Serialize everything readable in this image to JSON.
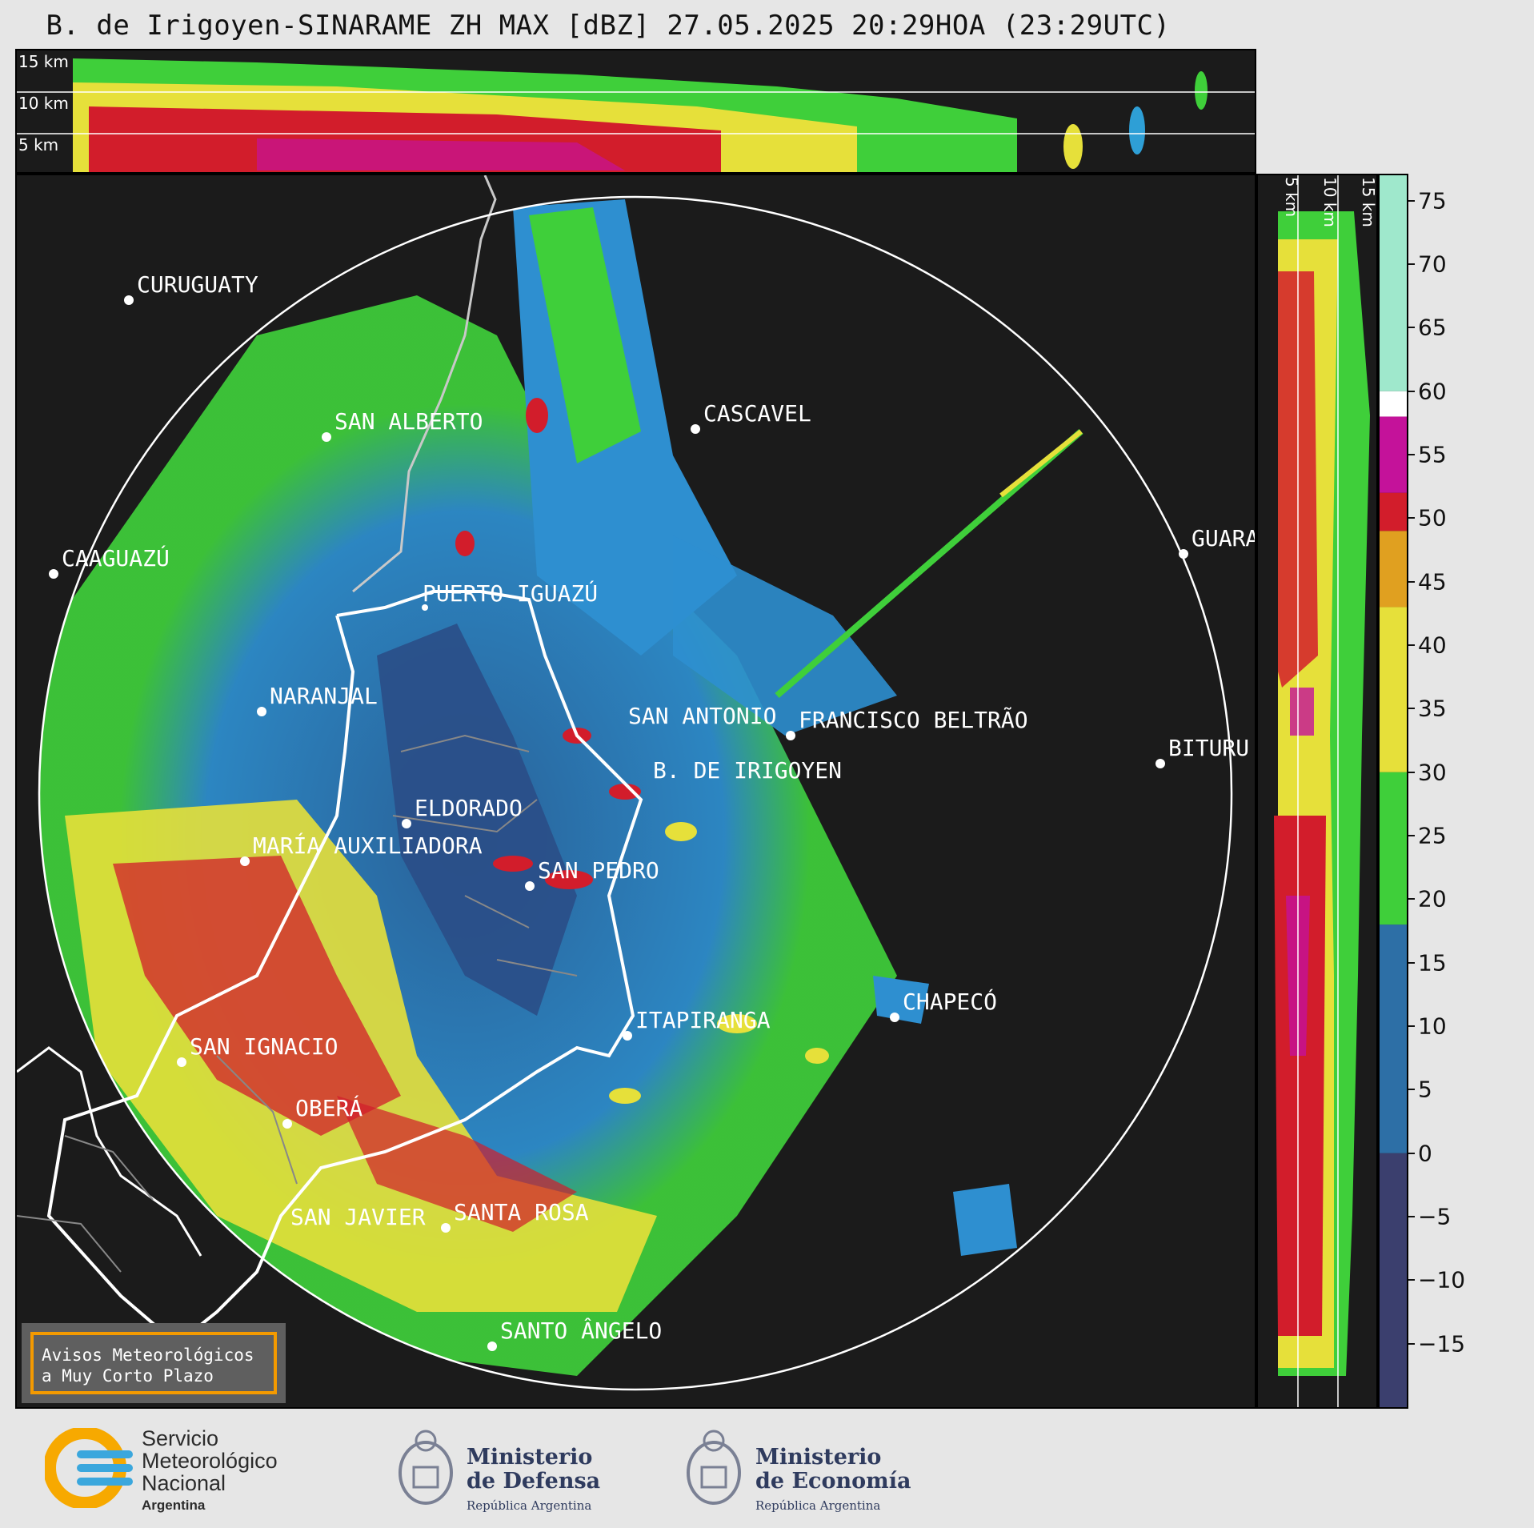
{
  "title": "B. de Irigoyen-SINARAME ZH MAX [dBZ] 27.05.2025 20:29HOA (23:29UTC)",
  "top_profile": {
    "height_labels": [
      "15 km",
      "10 km",
      "5 km"
    ]
  },
  "right_profile": {
    "height_labels": [
      "5 km",
      "10 km",
      "15 km"
    ]
  },
  "colorbar": {
    "unit": "dBZ",
    "ticks": [
      "75",
      "70",
      "65",
      "60",
      "55",
      "50",
      "45",
      "40",
      "35",
      "30",
      "25",
      "20",
      "15",
      "10",
      "5",
      "0",
      "−5",
      "−10",
      "−15"
    ],
    "bands": [
      {
        "from": -20,
        "to": 0,
        "color": "#3b3f6e"
      },
      {
        "from": 0,
        "to": 18,
        "color": "#2d6fa6"
      },
      {
        "from": 18,
        "to": 30,
        "color": "#3fcf3a"
      },
      {
        "from": 30,
        "to": 43,
        "color": "#e6e03a"
      },
      {
        "from": 43,
        "to": 49,
        "color": "#e0a020"
      },
      {
        "from": 49,
        "to": 52,
        "color": "#d21d2b"
      },
      {
        "from": 52,
        "to": 58,
        "color": "#c4129a"
      },
      {
        "from": 58,
        "to": 60,
        "color": "#ffffff"
      },
      {
        "from": 60,
        "to": 77,
        "color": "#9fe8cc"
      }
    ]
  },
  "cities": [
    {
      "name": "CURUGUATY"
    },
    {
      "name": "SAN ALBERTO"
    },
    {
      "name": "CASCAVEL"
    },
    {
      "name": "CAAGUAZÚ"
    },
    {
      "name": "GUARA"
    },
    {
      "name": "PUERTO IGUAZÚ"
    },
    {
      "name": "NARANJAL"
    },
    {
      "name": "SAN ANTONIO"
    },
    {
      "name": "FRANCISCO BELTRÃO"
    },
    {
      "name": "BITURU"
    },
    {
      "name": "B. DE IRIGOYEN"
    },
    {
      "name": "ELDORADO"
    },
    {
      "name": "MARÍA AUXILIADORA"
    },
    {
      "name": "SAN PEDRO"
    },
    {
      "name": "CHAPECÓ"
    },
    {
      "name": "ITAPIRANGA"
    },
    {
      "name": "SAN IGNACIO"
    },
    {
      "name": "OBERÁ"
    },
    {
      "name": "SAN JAVIER"
    },
    {
      "name": "SANTA ROSA"
    },
    {
      "name": "SANTO ÂNGELO"
    }
  ],
  "aviso": {
    "line1": "Avisos Meteorológicos",
    "line2": "a Muy Corto Plazo"
  },
  "footer": {
    "smn": {
      "line1": "Servicio",
      "line2": "Meteorológico",
      "line3": "Nacional",
      "line4": "Argentina"
    },
    "defensa": {
      "line1": "Ministerio",
      "line2": "de Defensa",
      "line3": "República Argentina"
    },
    "economia": {
      "line1": "Ministerio",
      "line2": "de Economía",
      "line3": "República Argentina"
    }
  }
}
